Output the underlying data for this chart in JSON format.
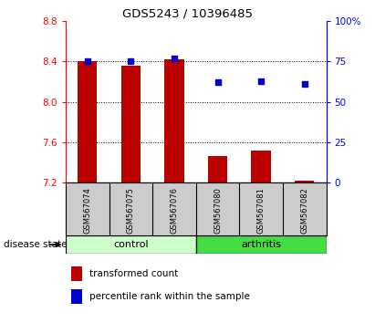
{
  "title": "GDS5243 / 10396485",
  "samples": [
    "GSM567074",
    "GSM567075",
    "GSM567076",
    "GSM567080",
    "GSM567081",
    "GSM567082"
  ],
  "groups": [
    "control",
    "control",
    "control",
    "arthritis",
    "arthritis",
    "arthritis"
  ],
  "bar_values": [
    8.4,
    8.36,
    8.42,
    7.46,
    7.52,
    7.22
  ],
  "bar_bottom": 7.2,
  "percentile_values": [
    75,
    75,
    77,
    62,
    63,
    61
  ],
  "left_ylim": [
    7.2,
    8.8
  ],
  "right_ylim": [
    0,
    100
  ],
  "left_yticks": [
    7.2,
    7.6,
    8.0,
    8.4,
    8.8
  ],
  "right_yticks": [
    0,
    25,
    50,
    75,
    100
  ],
  "right_yticklabels": [
    "0",
    "25",
    "50",
    "75",
    "100%"
  ],
  "bar_color": "#bb0000",
  "dot_color": "#0000cc",
  "control_color": "#ccffcc",
  "arthritis_color": "#44dd44",
  "label_bg_color": "#cccccc",
  "legend_items": [
    "transformed count",
    "percentile rank within the sample"
  ],
  "disease_state_label": "disease state",
  "figsize": [
    4.11,
    3.54
  ],
  "dpi": 100
}
